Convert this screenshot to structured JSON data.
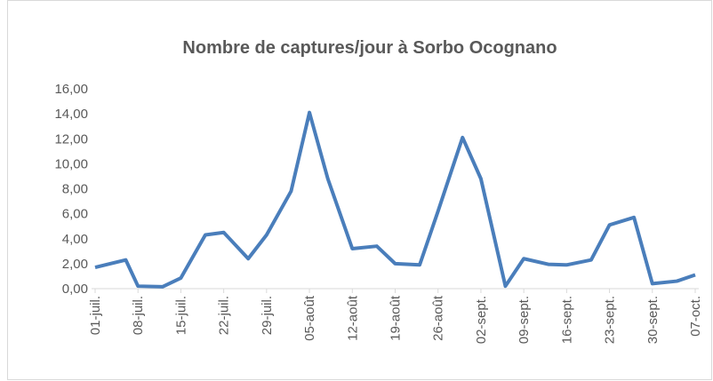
{
  "chart_data": {
    "type": "line",
    "title": "Nombre de captures/jour à Sorbo Ocognano",
    "series": [
      {
        "name": "captures",
        "color": "#4a7ebb",
        "x": [
          182,
          187,
          189,
          193,
          196,
          200,
          203,
          207,
          210,
          214,
          217,
          220,
          224,
          228,
          231,
          235,
          238,
          242,
          245,
          249,
          252,
          256,
          259,
          263,
          266,
          270,
          273,
          277,
          280
        ],
        "values": [
          1.7,
          2.3,
          0.2,
          0.15,
          0.85,
          4.3,
          4.5,
          2.4,
          4.3,
          7.8,
          14.1,
          8.8,
          3.2,
          3.4,
          2.0,
          1.9,
          6.2,
          12.1,
          8.8,
          0.2,
          2.4,
          1.95,
          1.9,
          2.3,
          5.1,
          5.7,
          0.4,
          0.6,
          1.1
        ]
      }
    ],
    "xlim": [
      182,
      280
    ],
    "xticks": [
      {
        "value": 182,
        "label": "01-juil."
      },
      {
        "value": 189,
        "label": "08-juil."
      },
      {
        "value": 196,
        "label": "15-juil."
      },
      {
        "value": 203,
        "label": "22-juil."
      },
      {
        "value": 210,
        "label": "29-juil."
      },
      {
        "value": 217,
        "label": "05-août"
      },
      {
        "value": 224,
        "label": "12-août"
      },
      {
        "value": 231,
        "label": "19-août"
      },
      {
        "value": 238,
        "label": "26-août"
      },
      {
        "value": 245,
        "label": "02-sept."
      },
      {
        "value": 252,
        "label": "09-sept."
      },
      {
        "value": 259,
        "label": "16-sept."
      },
      {
        "value": 266,
        "label": "23-sept."
      },
      {
        "value": 273,
        "label": "30-sept."
      },
      {
        "value": 280,
        "label": "07-oct."
      }
    ],
    "ylim": [
      0,
      16
    ],
    "yticks": [
      {
        "value": 0,
        "label": "0,00"
      },
      {
        "value": 2,
        "label": "2,00"
      },
      {
        "value": 4,
        "label": "4,00"
      },
      {
        "value": 6,
        "label": "6,00"
      },
      {
        "value": 8,
        "label": "8,00"
      },
      {
        "value": 10,
        "label": "10,00"
      },
      {
        "value": 12,
        "label": "12,00"
      },
      {
        "value": 14,
        "label": "14,00"
      },
      {
        "value": 16,
        "label": "16,00"
      }
    ],
    "grid": false
  }
}
